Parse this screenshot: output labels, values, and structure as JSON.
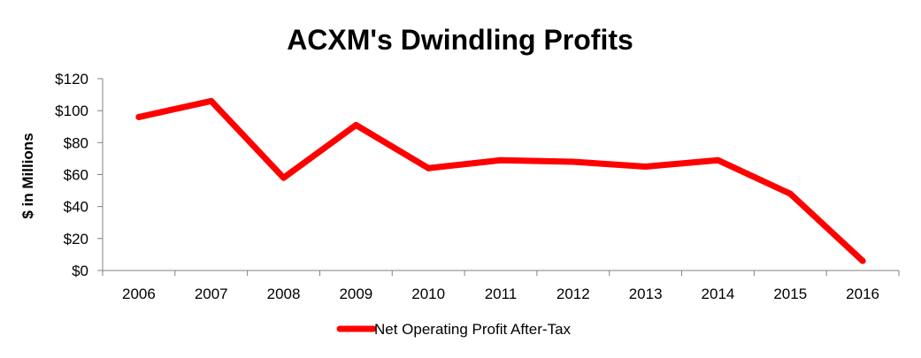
{
  "chart_data": {
    "type": "line",
    "title": "ACXM's Dwindling Profits",
    "xlabel": "",
    "ylabel": "$ in Millions",
    "categories": [
      "2006",
      "2007",
      "2008",
      "2009",
      "2010",
      "2011",
      "2012",
      "2013",
      "2014",
      "2015",
      "2016"
    ],
    "series": [
      {
        "name": "Net Operating Profit After-Tax",
        "color": "#ff0000",
        "values": [
          96,
          106,
          58,
          91,
          64,
          69,
          68,
          65,
          69,
          48,
          6
        ]
      }
    ],
    "ylim": [
      0,
      120
    ],
    "yticks": [
      0,
      20,
      40,
      60,
      80,
      100,
      120
    ],
    "ytick_labels": [
      "$0",
      "$20",
      "$40",
      "$60",
      "$80",
      "$100",
      "$120"
    ],
    "grid": false,
    "legend_position": "bottom"
  }
}
